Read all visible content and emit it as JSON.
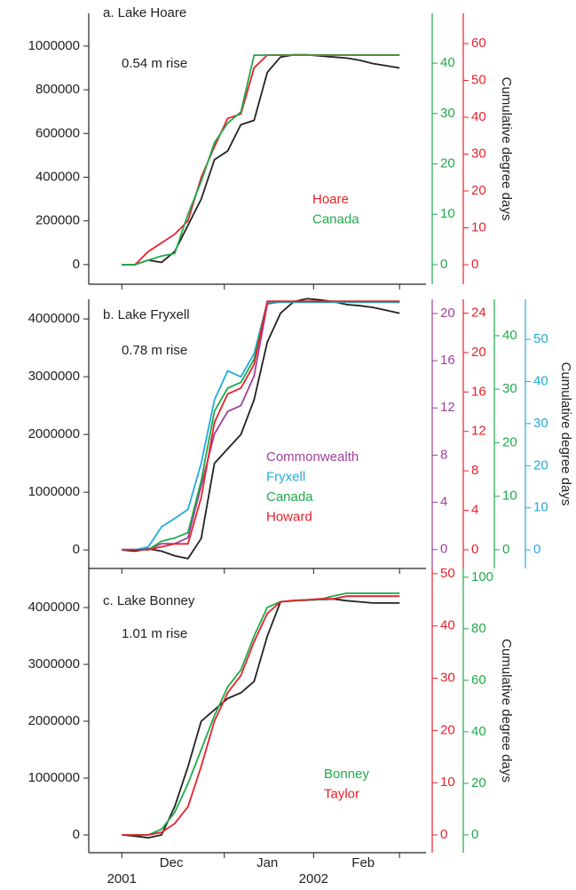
{
  "chart_data": [
    {
      "type": "line",
      "title": "a. Lake Hoare",
      "annotation": "0.54 m rise",
      "y2label": "Cumulative degree days",
      "xlim": [
        -10,
        92
      ],
      "xticks": [
        0,
        31,
        58,
        84
      ],
      "ylim": [
        -90000,
        1150000
      ],
      "yticks": [
        0,
        200000,
        400000,
        600000,
        800000,
        1000000
      ],
      "x": [
        0,
        4,
        8,
        12,
        16,
        20,
        24,
        28,
        32,
        36,
        40,
        44,
        48,
        52,
        56,
        60,
        64,
        68,
        72,
        76,
        80,
        84
      ],
      "right_axes": [
        {
          "color": "#1faa4a",
          "ylim": [
            -3.9,
            49.9
          ],
          "yticks": [
            0,
            10,
            20,
            30,
            40
          ]
        },
        {
          "color": "#e8202a",
          "ylim": [
            -5.3,
            68.2
          ],
          "yticks": [
            0,
            10,
            20,
            30,
            40,
            50,
            60
          ]
        }
      ],
      "series": [
        {
          "color": "#222222",
          "values": [
            0,
            0,
            20000,
            10000,
            60000,
            180000,
            300000,
            480000,
            520000,
            640000,
            660000,
            880000,
            950000,
            960000,
            960000,
            955000,
            950000,
            945000,
            935000,
            920000,
            910000,
            900000
          ]
        },
        {
          "name": "Hoare",
          "color": "#e8202a",
          "axis": 1,
          "values": [
            0,
            0,
            3.6,
            5.9,
            8.3,
            11.9,
            23.7,
            32.0,
            39.7,
            40.9,
            53.4,
            56.9,
            56.9,
            56.9,
            56.9,
            56.9,
            56.9,
            56.9,
            56.9,
            56.9,
            56.9,
            56.9
          ]
        },
        {
          "name": "Canada",
          "color": "#1faa4a",
          "axis": 0,
          "values": [
            0,
            0,
            0.9,
            1.7,
            2.2,
            10,
            16.5,
            24.2,
            28.1,
            30.3,
            41.6,
            41.6,
            41.6,
            41.6,
            41.6,
            41.6,
            41.6,
            41.6,
            41.6,
            41.6,
            41.6,
            41.6
          ]
        }
      ]
    },
    {
      "type": "line",
      "title": "b. Lake Fryxell",
      "annotation": "0.78 m rise",
      "y2label": "Cumulative degree days",
      "xlim": [
        -10,
        92
      ],
      "xticks": [
        0,
        31,
        58,
        84
      ],
      "ylim": [
        -320000,
        4340000
      ],
      "yticks": [
        0,
        1000000,
        2000000,
        3000000,
        4000000
      ],
      "x": [
        0,
        4,
        8,
        12,
        16,
        20,
        24,
        28,
        32,
        36,
        40,
        44,
        48,
        52,
        56,
        60,
        64,
        68,
        72,
        76,
        80,
        84
      ],
      "right_axes": [
        {
          "color": "#a0409a",
          "ylim": [
            -1.6,
            21.2
          ],
          "yticks": [
            0,
            4,
            8,
            12,
            16,
            20
          ]
        },
        {
          "color": "#e8202a",
          "ylim": [
            -1.9,
            25.4
          ],
          "yticks": [
            0,
            4,
            8,
            12,
            16,
            20,
            24
          ]
        },
        {
          "color": "#1faa4a",
          "ylim": [
            -3.5,
            46.8
          ],
          "yticks": [
            0,
            10,
            20,
            30,
            40
          ]
        },
        {
          "color": "#22aadd",
          "ylim": [
            -4.4,
            59.5
          ],
          "yticks": [
            0,
            10,
            20,
            30,
            40,
            50
          ]
        }
      ],
      "series": [
        {
          "color": "#222222",
          "values": [
            0,
            -20000,
            20000,
            -20000,
            -100000,
            -150000,
            200000,
            1500000,
            1750000,
            2000000,
            2600000,
            3600000,
            4100000,
            4300000,
            4350000,
            4330000,
            4300000,
            4250000,
            4230000,
            4200000,
            4150000,
            4100000
          ]
        },
        {
          "name": "Commonwealth",
          "color": "#a0409a",
          "axis": 0,
          "values": [
            0,
            0,
            0,
            0.5,
            0.5,
            1.0,
            5.4,
            9.8,
            11.7,
            12.2,
            14.7,
            20.8,
            21.0,
            21.0,
            21.0,
            21.0,
            21.0,
            21.0,
            21.0,
            21.0,
            21.0,
            21.0
          ]
        },
        {
          "name": "Fryxell",
          "color": "#22aadd",
          "axis": 3,
          "values": [
            0,
            0,
            0.7,
            5.5,
            7.5,
            9.6,
            20.6,
            35.6,
            42.5,
            41.1,
            46.6,
            58.8,
            58.8,
            58.8,
            58.8,
            58.8,
            58.8,
            58.8,
            58.8,
            58.8,
            58.8,
            58.8
          ]
        },
        {
          "name": "Canada",
          "color": "#1faa4a",
          "axis": 2,
          "values": [
            0,
            0,
            0,
            1.6,
            2.2,
            3.2,
            12.9,
            25.9,
            30.2,
            31.3,
            35.6,
            46.4,
            46.4,
            46.4,
            46.4,
            46.4,
            46.4,
            46.4,
            46.4,
            46.4,
            46.4,
            46.4
          ]
        },
        {
          "name": "Howard",
          "color": "#e8202a",
          "axis": 1,
          "values": [
            0,
            0,
            0,
            0.3,
            0.6,
            0.6,
            5.3,
            12.9,
            15.8,
            16.4,
            18.8,
            25.2,
            25.2,
            25.2,
            25.2,
            25.2,
            25.2,
            25.2,
            25.2,
            25.2,
            25.2,
            25.2
          ]
        }
      ]
    },
    {
      "type": "line",
      "title": "c. Lake Bonney",
      "annotation": "1.01 m rise",
      "y2label": "Cumulative degree days",
      "xlim": [
        -10,
        92
      ],
      "xticks": [
        0,
        31,
        58,
        84
      ],
      "month_labels": [
        {
          "value": 15,
          "label": "Dec"
        },
        {
          "value": 44,
          "label": "Jan"
        },
        {
          "value": 73,
          "label": "Feb"
        }
      ],
      "year_labels": [
        {
          "value": 0,
          "label": "2001"
        },
        {
          "value": 58,
          "label": "2002"
        }
      ],
      "ylim": [
        -312500,
        4687500
      ],
      "yticks": [
        0,
        1000000,
        2000000,
        3000000,
        4000000
      ],
      "x": [
        0,
        4,
        8,
        12,
        16,
        20,
        24,
        28,
        32,
        36,
        40,
        44,
        48,
        52,
        56,
        60,
        64,
        68,
        72,
        76,
        80,
        84
      ],
      "right_axes": [
        {
          "color": "#e8202a",
          "ylim": [
            -3.4,
            51.0
          ],
          "yticks": [
            0,
            10,
            20,
            30,
            40,
            50
          ]
        },
        {
          "color": "#1faa4a",
          "ylim": [
            -6.9,
            103.4
          ],
          "yticks": [
            0,
            20,
            40,
            60,
            80,
            100
          ]
        }
      ],
      "series": [
        {
          "color": "#222222",
          "values": [
            0,
            -20000,
            -50000,
            0,
            500000,
            1200000,
            2000000,
            2200000,
            2400000,
            2500000,
            2700000,
            3500000,
            4100000,
            4120000,
            4130000,
            4140000,
            4150000,
            4120000,
            4100000,
            4080000,
            4080000,
            4080000
          ]
        },
        {
          "name": "Bonney",
          "color": "#1faa4a",
          "axis": 1,
          "values": [
            0,
            0,
            0,
            2.2,
            8.8,
            19.9,
            33.1,
            46.3,
            57.4,
            64.0,
            77.2,
            88.3,
            90.5,
            90.9,
            91.1,
            91.4,
            92.7,
            93.8,
            93.8,
            93.8,
            93.8,
            93.8
          ]
        },
        {
          "name": "Taylor",
          "color": "#e8202a",
          "axis": 0,
          "values": [
            0,
            0,
            0,
            0.5,
            2.2,
            5.4,
            13.1,
            21.8,
            27.2,
            30.5,
            37.0,
            42.4,
            44.6,
            44.9,
            45.0,
            45.2,
            45.2,
            45.7,
            45.7,
            45.7,
            45.7,
            45.7
          ]
        }
      ]
    }
  ]
}
